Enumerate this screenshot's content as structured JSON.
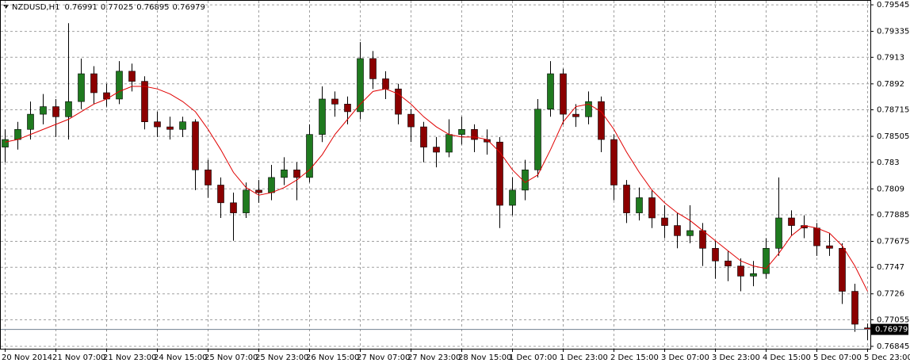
{
  "chart_data": {
    "type": "candlestick",
    "symbol": "NZDUSD,H1",
    "ohlc": [
      [
        0.7842,
        0.7856,
        0.783,
        0.7848
      ],
      [
        0.7848,
        0.7862,
        0.784,
        0.7856
      ],
      [
        0.7856,
        0.7878,
        0.7848,
        0.7868
      ],
      [
        0.7868,
        0.7884,
        0.786,
        0.7874
      ],
      [
        0.7874,
        0.788,
        0.785,
        0.7866
      ],
      [
        0.7866,
        0.794,
        0.7848,
        0.7878
      ],
      [
        0.7878,
        0.7912,
        0.7872,
        0.79
      ],
      [
        0.79,
        0.7906,
        0.7876,
        0.7885
      ],
      [
        0.7885,
        0.7892,
        0.7874,
        0.788
      ],
      [
        0.788,
        0.791,
        0.7876,
        0.7902
      ],
      [
        0.7902,
        0.7908,
        0.7886,
        0.7894
      ],
      [
        0.7894,
        0.7898,
        0.7856,
        0.7862
      ],
      [
        0.7862,
        0.787,
        0.785,
        0.7858
      ],
      [
        0.7858,
        0.7866,
        0.7848,
        0.7856
      ],
      [
        0.7856,
        0.7866,
        0.785,
        0.7862
      ],
      [
        0.7862,
        0.7864,
        0.7808,
        0.7824
      ],
      [
        0.7824,
        0.7832,
        0.7802,
        0.7812
      ],
      [
        0.7812,
        0.7818,
        0.7786,
        0.7798
      ],
      [
        0.7798,
        0.7806,
        0.7768,
        0.779
      ],
      [
        0.779,
        0.7814,
        0.7786,
        0.7808
      ],
      [
        0.7808,
        0.7816,
        0.7798,
        0.7806
      ],
      [
        0.7806,
        0.7828,
        0.78,
        0.7818
      ],
      [
        0.7818,
        0.7834,
        0.7812,
        0.7824
      ],
      [
        0.7824,
        0.783,
        0.78,
        0.7818
      ],
      [
        0.7818,
        0.786,
        0.7814,
        0.7852
      ],
      [
        0.7852,
        0.789,
        0.7846,
        0.788
      ],
      [
        0.788,
        0.7886,
        0.7866,
        0.7876
      ],
      [
        0.7876,
        0.7882,
        0.786,
        0.787
      ],
      [
        0.787,
        0.7925,
        0.7864,
        0.7912
      ],
      [
        0.7912,
        0.7918,
        0.7888,
        0.7896
      ],
      [
        0.7896,
        0.7902,
        0.788,
        0.7888
      ],
      [
        0.7888,
        0.7892,
        0.786,
        0.7868
      ],
      [
        0.7868,
        0.7872,
        0.7846,
        0.7858
      ],
      [
        0.7858,
        0.7862,
        0.783,
        0.7842
      ],
      [
        0.7842,
        0.785,
        0.7826,
        0.7838
      ],
      [
        0.7838,
        0.7864,
        0.7834,
        0.7852
      ],
      [
        0.7852,
        0.7866,
        0.7844,
        0.7856
      ],
      [
        0.7856,
        0.786,
        0.7838,
        0.7848
      ],
      [
        0.7848,
        0.7856,
        0.7836,
        0.7846
      ],
      [
        0.7846,
        0.785,
        0.7778,
        0.7796
      ],
      [
        0.7796,
        0.7818,
        0.7788,
        0.7808
      ],
      [
        0.7808,
        0.7832,
        0.78,
        0.7824
      ],
      [
        0.7824,
        0.788,
        0.7818,
        0.7872
      ],
      [
        0.7872,
        0.791,
        0.7866,
        0.79
      ],
      [
        0.79,
        0.7904,
        0.786,
        0.7868
      ],
      [
        0.7868,
        0.7876,
        0.7858,
        0.7866
      ],
      [
        0.7866,
        0.7886,
        0.786,
        0.7878
      ],
      [
        0.7878,
        0.7882,
        0.7838,
        0.7848
      ],
      [
        0.7848,
        0.7852,
        0.78,
        0.7812
      ],
      [
        0.7812,
        0.7816,
        0.7782,
        0.779
      ],
      [
        0.779,
        0.781,
        0.7784,
        0.7802
      ],
      [
        0.7802,
        0.7808,
        0.7778,
        0.7786
      ],
      [
        0.7786,
        0.7796,
        0.777,
        0.778
      ],
      [
        0.778,
        0.779,
        0.7762,
        0.7772
      ],
      [
        0.7772,
        0.7796,
        0.7766,
        0.7776
      ],
      [
        0.7776,
        0.7782,
        0.7748,
        0.7762
      ],
      [
        0.7762,
        0.7768,
        0.7738,
        0.7752
      ],
      [
        0.7752,
        0.776,
        0.7736,
        0.7748
      ],
      [
        0.7748,
        0.7754,
        0.7728,
        0.774
      ],
      [
        0.774,
        0.7752,
        0.7732,
        0.7742
      ],
      [
        0.7742,
        0.777,
        0.7738,
        0.7762
      ],
      [
        0.7762,
        0.7818,
        0.7756,
        0.7786
      ],
      [
        0.7786,
        0.7792,
        0.7772,
        0.778
      ],
      [
        0.778,
        0.7788,
        0.777,
        0.7778
      ],
      [
        0.7778,
        0.7782,
        0.7756,
        0.7764
      ],
      [
        0.7764,
        0.7774,
        0.7756,
        0.7762
      ],
      [
        0.7762,
        0.7766,
        0.7718,
        0.7728
      ],
      [
        0.7728,
        0.7734,
        0.7696,
        0.7702
      ],
      [
        0.76991,
        0.77025,
        0.76895,
        0.76979
      ]
    ],
    "ma": [
      0.7846,
      0.7848,
      0.7852,
      0.7856,
      0.786,
      0.7864,
      0.787,
      0.7876,
      0.788,
      0.7886,
      0.789,
      0.789,
      0.7888,
      0.7884,
      0.7878,
      0.787,
      0.7856,
      0.784,
      0.7822,
      0.781,
      0.7804,
      0.7806,
      0.781,
      0.7816,
      0.7824,
      0.7836,
      0.7852,
      0.7864,
      0.7876,
      0.7886,
      0.7888,
      0.7884,
      0.7876,
      0.7866,
      0.7858,
      0.7852,
      0.785,
      0.785,
      0.7848,
      0.7838,
      0.7824,
      0.7814,
      0.782,
      0.784,
      0.7862,
      0.7874,
      0.7876,
      0.787,
      0.7856,
      0.7838,
      0.7822,
      0.7808,
      0.7798,
      0.779,
      0.7784,
      0.7776,
      0.7768,
      0.776,
      0.7752,
      0.7748,
      0.7746,
      0.7758,
      0.7772,
      0.778,
      0.7778,
      0.7774,
      0.7764,
      0.7748,
      0.7728
    ],
    "ma_color": "#e00000",
    "bull_color": "#1f7a1f",
    "bear_color": "#8b0000",
    "x_labels": [
      {
        "index": 0,
        "label": "20 Nov 2014"
      },
      {
        "index": 4,
        "label": "21 Nov 07:00"
      },
      {
        "index": 8,
        "label": "21 Nov 23:00"
      },
      {
        "index": 12,
        "label": "24 Nov 15:00"
      },
      {
        "index": 16,
        "label": "25 Nov 07:00"
      },
      {
        "index": 20,
        "label": "25 Nov 23:00"
      },
      {
        "index": 24,
        "label": "26 Nov 15:00"
      },
      {
        "index": 28,
        "label": "27 Nov 07:00"
      },
      {
        "index": 32,
        "label": "27 Nov 23:00"
      },
      {
        "index": 36,
        "label": "28 Nov 15:00"
      },
      {
        "index": 40,
        "label": "1 Dec 07:00"
      },
      {
        "index": 44,
        "label": "1 Dec 23:00"
      },
      {
        "index": 48,
        "label": "2 Dec 15:00"
      },
      {
        "index": 52,
        "label": "3 Dec 07:00"
      },
      {
        "index": 56,
        "label": "3 Dec 23:00"
      },
      {
        "index": 60,
        "label": "4 Dec 15:00"
      },
      {
        "index": 64,
        "label": "5 Dec 07:00"
      },
      {
        "index": 68,
        "label": "5 Dec 23:00"
      }
    ],
    "ylim": [
      0.76826,
      0.79583
    ],
    "yticks": [
      0.79545,
      0.79335,
      0.7913,
      0.7892,
      0.78715,
      0.78505,
      0.783,
      0.7809,
      0.77885,
      0.77675,
      0.7747,
      0.7726,
      0.77055,
      0.76845
    ],
    "grid": true
  }
}
